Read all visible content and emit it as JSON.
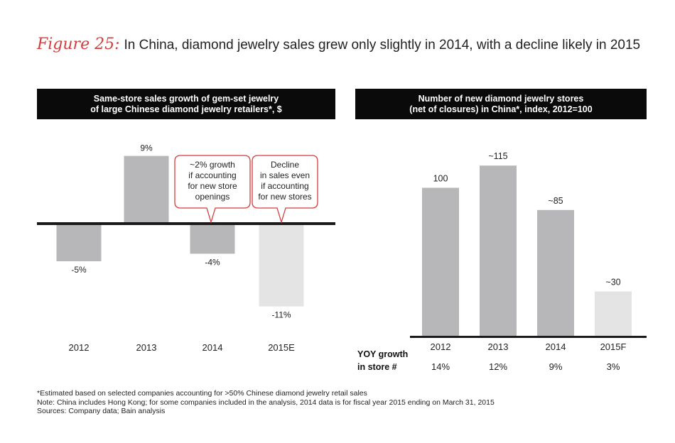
{
  "figure": {
    "label": "Figure 25:",
    "title": "In China, diamond jewelry sales grew only slightly in 2014, with a decline likely in 2015"
  },
  "colors": {
    "bar_dark": "#b7b7b9",
    "bar_light": "#e4e4e5",
    "callout_border": "#d63c3c",
    "header_bg": "#0a0a0a",
    "axis": "#1a1a1a"
  },
  "chart_data": [
    {
      "type": "bar",
      "title_lines": [
        "Same-store sales growth of gem-set jewelry",
        "of large Chinese diamond jewelry retailers*, $"
      ],
      "categories": [
        "2012",
        "2013",
        "2014",
        "2015E"
      ],
      "values": [
        -5,
        9,
        -4,
        -11
      ],
      "value_labels": [
        "-5%",
        "9%",
        "-4%",
        "-11%"
      ],
      "estimated": [
        false,
        false,
        false,
        true
      ],
      "ylim": [
        -13,
        10
      ],
      "xlabel": "",
      "ylabel": "",
      "annotations": [
        {
          "category": "2014",
          "lines": [
            "~2% growth",
            "if accounting",
            "for new store",
            "openings"
          ]
        },
        {
          "category": "2015E",
          "lines": [
            "Decline",
            "in sales even",
            "if accounting",
            "for new stores"
          ]
        }
      ]
    },
    {
      "type": "bar",
      "title_lines": [
        "Number of new diamond jewelry stores",
        "(net of closures) in China*, index, 2012=100"
      ],
      "categories": [
        "2012",
        "2013",
        "2014",
        "2015F"
      ],
      "values": [
        100,
        115,
        85,
        30
      ],
      "value_labels": [
        "100",
        "~115",
        "~85",
        "~30"
      ],
      "estimated": [
        false,
        false,
        false,
        true
      ],
      "ylim": [
        0,
        130
      ],
      "xlabel": "",
      "ylabel": "",
      "growth_label_lines": [
        "YOY growth",
        "in store #"
      ],
      "growth_values": [
        "14%",
        "12%",
        "9%",
        "3%"
      ]
    }
  ],
  "footnotes": [
    "*Estimated based on selected companies accounting for >50% Chinese diamond jewelry retail sales",
    "Note: China includes Hong Kong; for some companies included in the analysis, 2014 data is for fiscal year 2015 ending on March 31, 2015",
    "Sources: Company data; Bain analysis"
  ]
}
